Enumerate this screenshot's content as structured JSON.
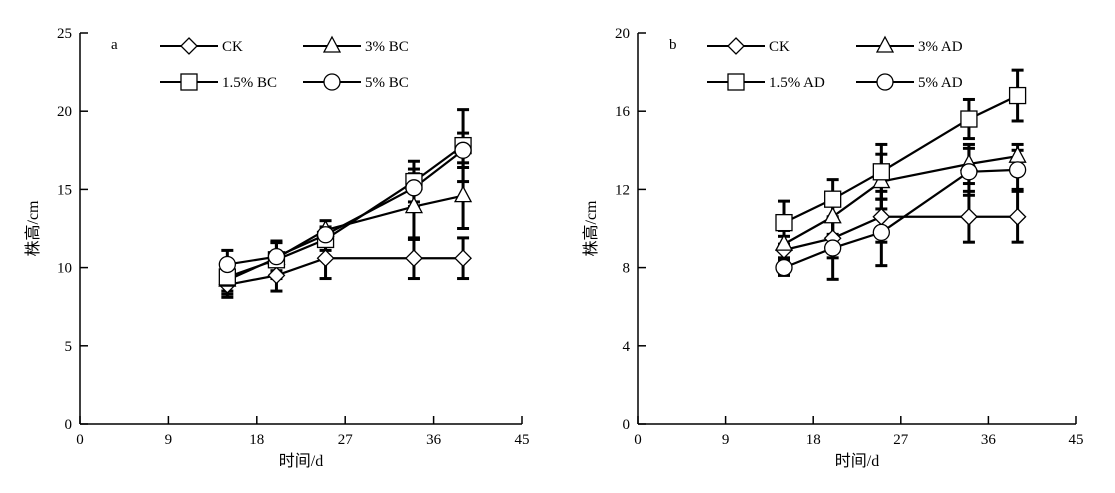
{
  "chart_data": [
    {
      "type": "line",
      "panel_label": "a",
      "xlabel": "时间/d",
      "ylabel": "株高/cm",
      "xlim": [
        0,
        45
      ],
      "ylim": [
        0,
        25
      ],
      "xticks": [
        0,
        9,
        18,
        27,
        36,
        45
      ],
      "yticks": [
        0,
        5,
        10,
        15,
        20,
        25
      ],
      "grid": false,
      "legend_position": "top-left",
      "x": [
        15,
        20,
        25,
        34,
        39
      ],
      "series": [
        {
          "name": "CK",
          "marker": "diamond",
          "values": [
            8.9,
            9.5,
            10.6,
            10.6,
            10.6
          ],
          "errors": [
            0.8,
            1.0,
            1.3,
            1.3,
            1.3
          ]
        },
        {
          "name": "3% BC",
          "marker": "triangle",
          "values": [
            9.2,
            10.6,
            12.4,
            13.9,
            14.6
          ],
          "errors": [
            0.9,
            1.0,
            0.6,
            2.1,
            2.1
          ]
        },
        {
          "name": "1.5% BC",
          "marker": "square",
          "values": [
            9.4,
            10.5,
            11.8,
            15.5,
            17.8
          ],
          "errors": [
            0.9,
            1.2,
            0.7,
            1.3,
            2.3
          ]
        },
        {
          "name": "5% BC",
          "marker": "circle",
          "values": [
            10.2,
            10.7,
            12.1,
            15.1,
            17.5
          ],
          "errors": [
            0.9,
            0.9,
            0.5,
            1.2,
            1.1
          ]
        }
      ]
    },
    {
      "type": "line",
      "panel_label": "b",
      "xlabel": "时间/d",
      "ylabel": "株高/cm",
      "xlim": [
        0,
        45
      ],
      "ylim": [
        0,
        20
      ],
      "xticks": [
        0,
        9,
        18,
        27,
        36,
        45
      ],
      "yticks": [
        0,
        4,
        8,
        12,
        16,
        20
      ],
      "grid": false,
      "legend_position": "top-left",
      "x": [
        15,
        20,
        25,
        34,
        39
      ],
      "series": [
        {
          "name": "CK",
          "marker": "diamond",
          "values": [
            8.9,
            9.5,
            10.6,
            10.6,
            10.6
          ],
          "errors": [
            0.7,
            1.0,
            1.3,
            1.3,
            1.3
          ]
        },
        {
          "name": "3% AD",
          "marker": "triangle",
          "values": [
            9.2,
            10.6,
            12.4,
            13.3,
            13.7
          ],
          "errors": [
            0.7,
            0.9,
            1.4,
            1.0,
            0.6
          ]
        },
        {
          "name": "1.5% AD",
          "marker": "square",
          "values": [
            10.3,
            11.5,
            12.9,
            15.6,
            16.8
          ],
          "errors": [
            1.1,
            1.0,
            1.4,
            1.0,
            1.3
          ]
        },
        {
          "name": "5% AD",
          "marker": "circle",
          "values": [
            8.0,
            9.0,
            9.8,
            12.9,
            13.0
          ],
          "errors": [
            0.4,
            1.6,
            1.7,
            1.2,
            1.0
          ]
        }
      ]
    }
  ]
}
